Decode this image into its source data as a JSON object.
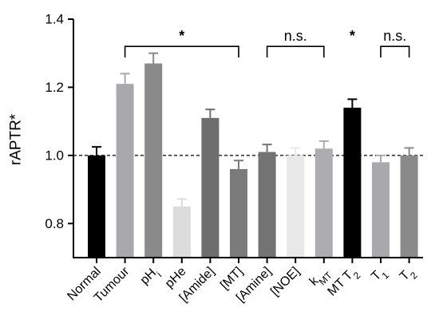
{
  "chart_data": {
    "type": "bar",
    "title": "",
    "xlabel": "",
    "ylabel": "rAPTR*",
    "ylim": [
      0.7,
      1.4
    ],
    "yticks": [
      "0.8",
      "1.0",
      "1.2",
      "1.4"
    ],
    "reference_line": 1.0,
    "categories": [
      {
        "label": "Normal",
        "sub": ""
      },
      {
        "label": "Tumour",
        "sub": ""
      },
      {
        "label": "pH",
        "sub": "i"
      },
      {
        "label": "pHe",
        "sub": ""
      },
      {
        "label": "[Amide]",
        "sub": ""
      },
      {
        "label": "[MT]",
        "sub": ""
      },
      {
        "label": "[Amine]",
        "sub": ""
      },
      {
        "label": "[NOE]",
        "sub": ""
      },
      {
        "label": "k",
        "sub": "MT"
      },
      {
        "label": "MT T",
        "sub": "2"
      },
      {
        "label": "T",
        "sub": "1"
      },
      {
        "label": "T",
        "sub": "2"
      }
    ],
    "values": [
      1.0,
      1.21,
      1.27,
      0.85,
      1.11,
      0.96,
      1.01,
      1.0,
      1.02,
      1.14,
      0.98,
      1.0
    ],
    "errors": [
      0.025,
      0.03,
      0.03,
      0.022,
      0.025,
      0.025,
      0.022,
      0.022,
      0.022,
      0.025,
      0.02,
      0.022
    ],
    "colors": [
      "#000000",
      "#a9a9ad",
      "#8a8a8a",
      "#dcdcdc",
      "#6e6e6e",
      "#7b7b7b",
      "#737373",
      "#e8e8e8",
      "#adadb1",
      "#000000",
      "#a9a9ad",
      "#8a8a8a"
    ],
    "significance": [
      {
        "from": 1,
        "to": 5,
        "label": "*",
        "y": 1.32
      },
      {
        "from": 6,
        "to": 8,
        "label": "n.s.",
        "y": 1.32
      },
      {
        "from": 9,
        "to": 9,
        "label": "*",
        "y": 1.32
      },
      {
        "from": 10,
        "to": 11,
        "label": "n.s.",
        "y": 1.32
      }
    ]
  }
}
